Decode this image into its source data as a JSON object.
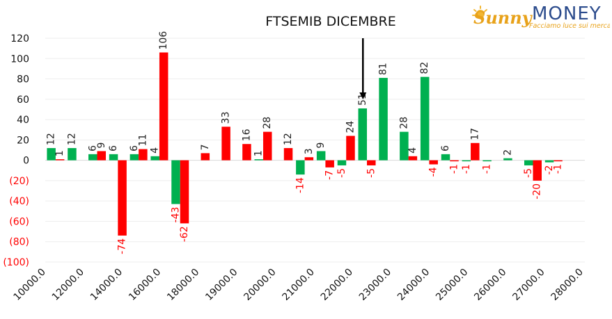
{
  "logo": {
    "brand_sunny": "Sunny",
    "brand_money": "MONEY",
    "tagline": "Facciamo luce sui mercati",
    "colors": {
      "sunny": "#e8a21a",
      "money": "#2b4b8c",
      "tagline": "#e8a21a"
    }
  },
  "chart_data": {
    "type": "bar",
    "title": "FTSEMIB DICEMBRE",
    "xlabel": "",
    "ylabel": "",
    "ylim": [
      -100,
      120
    ],
    "yticks": [
      120,
      100,
      80,
      60,
      40,
      20,
      0,
      -20,
      -40,
      -60,
      -80,
      -100
    ],
    "ytick_labels": [
      "120",
      "100",
      "80",
      "60",
      "40",
      "20",
      "0",
      "(20)",
      "(40)",
      "(60)",
      "(80)",
      "(100)"
    ],
    "x_tick_labels": [
      "10000.0",
      "12000.0",
      "14000.0",
      "16000.0",
      "18000.0",
      "19000.0",
      "20000.0",
      "21000.0",
      "22000.0",
      "23000.0",
      "24000.0",
      "25000.0",
      "26000.0",
      "27000.0",
      "28000.0"
    ],
    "categories": [
      "c01",
      "c02",
      "c03",
      "c04",
      "c05",
      "c06",
      "c07",
      "c08",
      "c09",
      "c10",
      "c11",
      "c12",
      "c13",
      "c14",
      "c15",
      "c16",
      "c17",
      "c18",
      "c19",
      "c20",
      "c21",
      "c22",
      "c23",
      "c24",
      "c25",
      "c26"
    ],
    "series": [
      {
        "color": "#00b050",
        "values": [
          12,
          12,
          6,
          6,
          6,
          4,
          -43,
          null,
          null,
          null,
          1,
          null,
          -14,
          9,
          -5,
          51,
          81,
          28,
          82,
          6,
          -1,
          -1,
          2,
          -5,
          -2,
          null
        ],
        "labels": [
          "12",
          "12",
          "6",
          "6",
          "6",
          "4",
          "-43",
          "",
          "",
          "",
          "1",
          "",
          "-14",
          "9",
          "-5",
          "51",
          "81",
          "28",
          "82",
          "6",
          "-1",
          "-1",
          "2",
          "-5",
          "-2",
          ""
        ]
      },
      {
        "color": "#ff0000",
        "values": [
          1,
          null,
          9,
          -74,
          11,
          106,
          -62,
          7,
          33,
          16,
          28,
          12,
          3,
          -7,
          24,
          -5,
          null,
          4,
          -4,
          -1,
          17,
          null,
          null,
          -20,
          -1,
          null
        ],
        "labels": [
          "1",
          "",
          "9",
          "-74",
          "11",
          "106",
          "-62",
          "7",
          "33",
          "16",
          "28",
          "12",
          "3",
          "-7",
          "24",
          "-5",
          "",
          "4",
          "-4",
          "-1",
          "17",
          "",
          "",
          "-20",
          "-1",
          ""
        ]
      }
    ],
    "negative_tick_color": "#ff0000",
    "grid": true,
    "legend": "none",
    "annotation": {
      "type": "arrow",
      "category": "c16",
      "direction": "down"
    }
  }
}
